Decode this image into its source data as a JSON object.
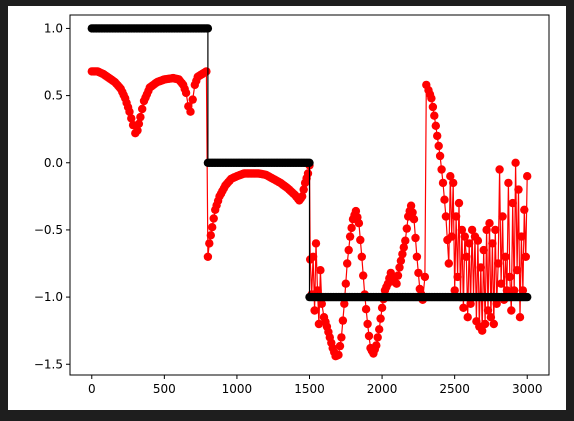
{
  "chart_data": {
    "type": "scatter",
    "title": "",
    "xlabel": "",
    "ylabel": "",
    "xlim": [
      -150,
      3150
    ],
    "ylim": [
      -1.58,
      1.1
    ],
    "x_ticks": [
      0,
      500,
      1000,
      1500,
      2000,
      2500,
      3000
    ],
    "y_ticks": [
      -1.5,
      -1.0,
      -0.5,
      0.0,
      0.5,
      1.0
    ],
    "x_tick_labels": [
      "0",
      "500",
      "1000",
      "1500",
      "2000",
      "2500",
      "3000"
    ],
    "y_tick_labels": [
      "−1.5",
      "−1.0",
      "−0.5",
      "0.0",
      "0.5",
      "1.0"
    ],
    "grid": false,
    "legend": "none",
    "series": [
      {
        "color": "#ff0000",
        "marker": "circle",
        "connected": true,
        "points": [
          [
            0,
            0.68
          ],
          [
            40,
            0.68
          ],
          [
            80,
            0.66
          ],
          [
            120,
            0.63
          ],
          [
            160,
            0.6
          ],
          [
            200,
            0.55
          ],
          [
            230,
            0.48
          ],
          [
            260,
            0.38
          ],
          [
            285,
            0.28
          ],
          [
            300,
            0.22
          ],
          [
            315,
            0.24
          ],
          [
            335,
            0.34
          ],
          [
            360,
            0.46
          ],
          [
            400,
            0.56
          ],
          [
            450,
            0.6
          ],
          [
            500,
            0.62
          ],
          [
            560,
            0.63
          ],
          [
            600,
            0.62
          ],
          [
            630,
            0.58
          ],
          [
            650,
            0.52
          ],
          [
            665,
            0.42
          ],
          [
            680,
            0.38
          ],
          [
            695,
            0.47
          ],
          [
            710,
            0.58
          ],
          [
            730,
            0.64
          ],
          [
            760,
            0.66
          ],
          [
            790,
            0.68
          ],
          [
            800,
            -0.7
          ],
          [
            810,
            -0.6
          ],
          [
            830,
            -0.48
          ],
          [
            850,
            -0.35
          ],
          [
            880,
            -0.25
          ],
          [
            920,
            -0.17
          ],
          [
            960,
            -0.12
          ],
          [
            1000,
            -0.1
          ],
          [
            1050,
            -0.08
          ],
          [
            1100,
            -0.08
          ],
          [
            1150,
            -0.08
          ],
          [
            1200,
            -0.09
          ],
          [
            1250,
            -0.12
          ],
          [
            1300,
            -0.15
          ],
          [
            1350,
            -0.19
          ],
          [
            1400,
            -0.24
          ],
          [
            1430,
            -0.28
          ],
          [
            1450,
            -0.25
          ],
          [
            1470,
            -0.15
          ],
          [
            1490,
            -0.08
          ],
          [
            1500,
            -0.02
          ],
          [
            1505,
            -0.72
          ],
          [
            1515,
            -0.98
          ],
          [
            1525,
            -0.7
          ],
          [
            1535,
            -1.1
          ],
          [
            1545,
            -0.6
          ],
          [
            1555,
            -0.95
          ],
          [
            1565,
            -1.2
          ],
          [
            1575,
            -0.8
          ],
          [
            1585,
            -1.05
          ],
          [
            1600,
            -1.15
          ],
          [
            1620,
            -1.22
          ],
          [
            1640,
            -1.3
          ],
          [
            1660,
            -1.38
          ],
          [
            1680,
            -1.44
          ],
          [
            1700,
            -1.43
          ],
          [
            1720,
            -1.3
          ],
          [
            1740,
            -1.05
          ],
          [
            1760,
            -0.75
          ],
          [
            1780,
            -0.55
          ],
          [
            1800,
            -0.42
          ],
          [
            1820,
            -0.36
          ],
          [
            1840,
            -0.45
          ],
          [
            1860,
            -0.7
          ],
          [
            1880,
            -0.98
          ],
          [
            1900,
            -1.2
          ],
          [
            1920,
            -1.38
          ],
          [
            1940,
            -1.42
          ],
          [
            1960,
            -1.36
          ],
          [
            1980,
            -1.24
          ],
          [
            2000,
            -1.08
          ],
          [
            2020,
            -0.95
          ],
          [
            2040,
            -0.9
          ],
          [
            2060,
            -0.82
          ],
          [
            2080,
            -0.88
          ],
          [
            2100,
            -0.9
          ],
          [
            2120,
            -0.78
          ],
          [
            2140,
            -0.68
          ],
          [
            2160,
            -0.58
          ],
          [
            2180,
            -0.4
          ],
          [
            2200,
            -0.32
          ],
          [
            2220,
            -0.42
          ],
          [
            2240,
            -0.7
          ],
          [
            2260,
            -0.94
          ],
          [
            2280,
            -1.02
          ],
          [
            2295,
            -0.85
          ],
          [
            2305,
            0.58
          ],
          [
            2320,
            0.54
          ],
          [
            2340,
            0.48
          ],
          [
            2360,
            0.35
          ],
          [
            2380,
            0.2
          ],
          [
            2400,
            0.05
          ],
          [
            2420,
            -0.15
          ],
          [
            2440,
            -0.4
          ],
          [
            2460,
            -0.75
          ],
          [
            2470,
            -0.1
          ],
          [
            2480,
            -0.55
          ],
          [
            2490,
            -0.15
          ],
          [
            2500,
            -0.95
          ],
          [
            2510,
            -0.4
          ],
          [
            2520,
            -0.85
          ],
          [
            2530,
            -0.3
          ],
          [
            2540,
            -1.0
          ],
          [
            2550,
            -0.5
          ],
          [
            2560,
            -1.08
          ],
          [
            2570,
            -0.55
          ],
          [
            2580,
            -0.7
          ],
          [
            2590,
            -1.15
          ],
          [
            2600,
            -0.6
          ],
          [
            2610,
            -1.05
          ],
          [
            2620,
            -0.5
          ],
          [
            2630,
            -1.0
          ],
          [
            2640,
            -0.55
          ],
          [
            2650,
            -1.18
          ],
          [
            2660,
            -0.58
          ],
          [
            2670,
            -1.22
          ],
          [
            2680,
            -0.78
          ],
          [
            2690,
            -1.25
          ],
          [
            2700,
            -0.65
          ],
          [
            2710,
            -1.2
          ],
          [
            2720,
            -0.5
          ],
          [
            2730,
            -1.1
          ],
          [
            2740,
            -0.45
          ],
          [
            2750,
            -1.15
          ],
          [
            2760,
            -0.6
          ],
          [
            2770,
            -1.2
          ],
          [
            2780,
            -0.5
          ],
          [
            2790,
            -1.05
          ],
          [
            2800,
            -0.75
          ],
          [
            2810,
            -0.05
          ],
          [
            2820,
            -0.9
          ],
          [
            2830,
            -0.4
          ],
          [
            2840,
            -1.02
          ],
          [
            2850,
            -0.7
          ],
          [
            2860,
            -0.95
          ],
          [
            2870,
            -0.15
          ],
          [
            2880,
            -0.85
          ],
          [
            2890,
            -1.1
          ],
          [
            2900,
            -0.3
          ],
          [
            2910,
            -0.95
          ],
          [
            2920,
            0.0
          ],
          [
            2930,
            -0.8
          ],
          [
            2940,
            -0.2
          ],
          [
            2950,
            -1.15
          ],
          [
            2960,
            -0.55
          ],
          [
            2970,
            -0.95
          ],
          [
            2980,
            -0.35
          ],
          [
            2990,
            -0.7
          ],
          [
            3000,
            -0.1
          ]
        ]
      },
      {
        "color": "#000000",
        "marker": "circle",
        "connected": true,
        "points": [
          [
            0,
            1.0
          ],
          [
            800,
            1.0
          ],
          [
            800,
            0.0
          ],
          [
            1500,
            0.0
          ],
          [
            1500,
            -1.0
          ],
          [
            3000,
            -1.0
          ]
        ]
      }
    ]
  }
}
